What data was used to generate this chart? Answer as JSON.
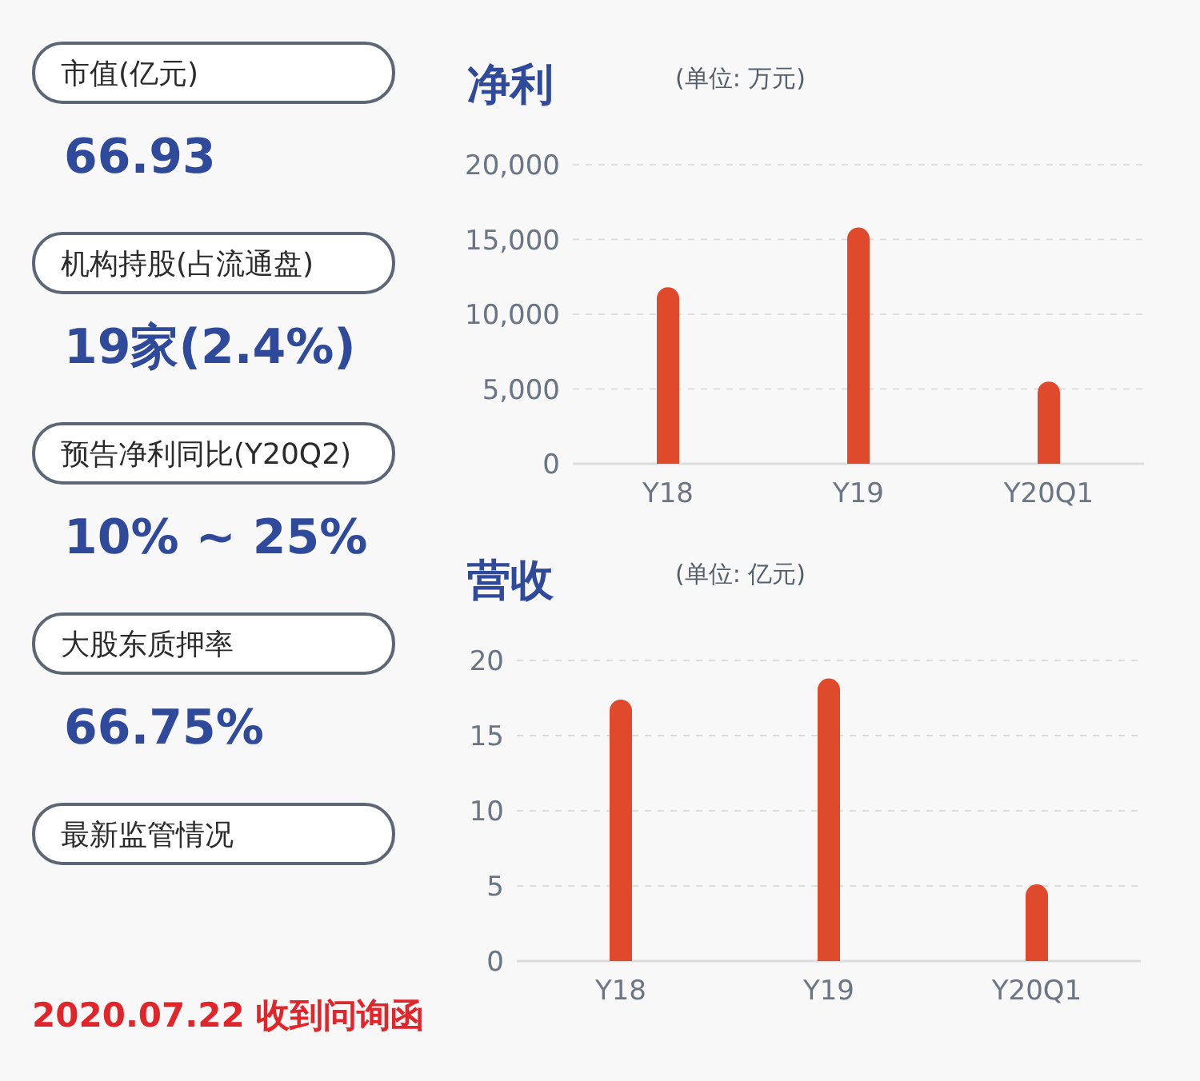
{
  "chart_data": [
    {
      "type": "other",
      "annotations": [
        "市值(亿元)",
        "66.93",
        "机构持股(占流通盘)",
        "19家(2.4%)",
        "预告净利同比(Y20Q2)",
        "10% ~ 25%",
        "大股东质押率",
        "66.75%",
        "最新监管情况",
        "2020.07.22 收到问询函"
      ]
    },
    {
      "type": "bar",
      "title": "净利",
      "subtitle": "(单位: 万元)",
      "categories": [
        "Y18",
        "Y19",
        "Y20Q1"
      ],
      "values": [
        11800,
        15800,
        5500
      ],
      "color": "#e04a2c",
      "ylim": [
        0,
        20000
      ],
      "yticks": [
        {
          "value": 0,
          "label": "0"
        },
        {
          "value": 5000,
          "label": "5,000"
        },
        {
          "value": 10000,
          "label": "10,000"
        },
        {
          "value": 15000,
          "label": "15,000"
        },
        {
          "value": 20000,
          "label": "20,000"
        }
      ],
      "grid": "y"
    },
    {
      "type": "bar",
      "title": "营收",
      "subtitle": "(单位: 亿元)",
      "categories": [
        "Y18",
        "Y19",
        "Y20Q1"
      ],
      "values": [
        17.4,
        18.8,
        5.1
      ],
      "color": "#e04a2c",
      "ylim": [
        0,
        20
      ],
      "yticks": [
        0,
        5,
        10,
        15,
        20
      ],
      "grid": "y"
    }
  ]
}
